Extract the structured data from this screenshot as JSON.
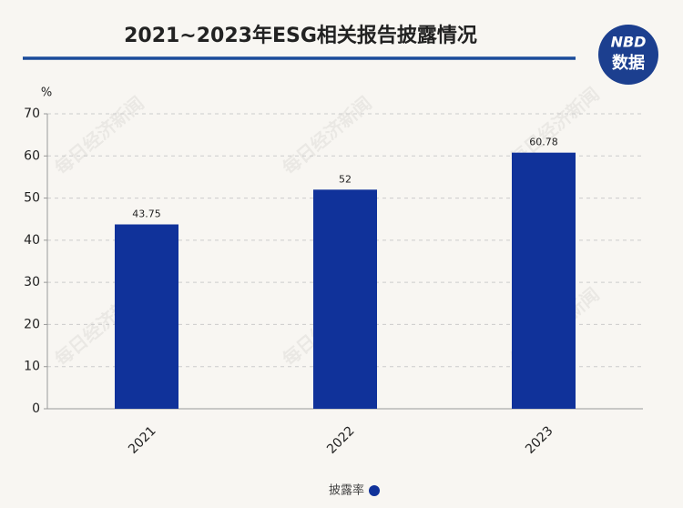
{
  "chart_data": {
    "type": "bar",
    "title": "2021~2023年ESG相关报告披露情况",
    "y_label": "%",
    "categories": [
      "2021",
      "2022",
      "2023"
    ],
    "series": [
      {
        "name": "披露率",
        "color": "#10329a",
        "values": [
          43.75,
          52,
          60.78
        ]
      }
    ],
    "ylim": [
      0,
      70
    ],
    "yticks": [
      0,
      10,
      20,
      30,
      40,
      50,
      60,
      70
    ],
    "grid": true,
    "logo": {
      "top": "NBD",
      "bottom": "数据"
    },
    "watermark": "每日经济新闻"
  }
}
